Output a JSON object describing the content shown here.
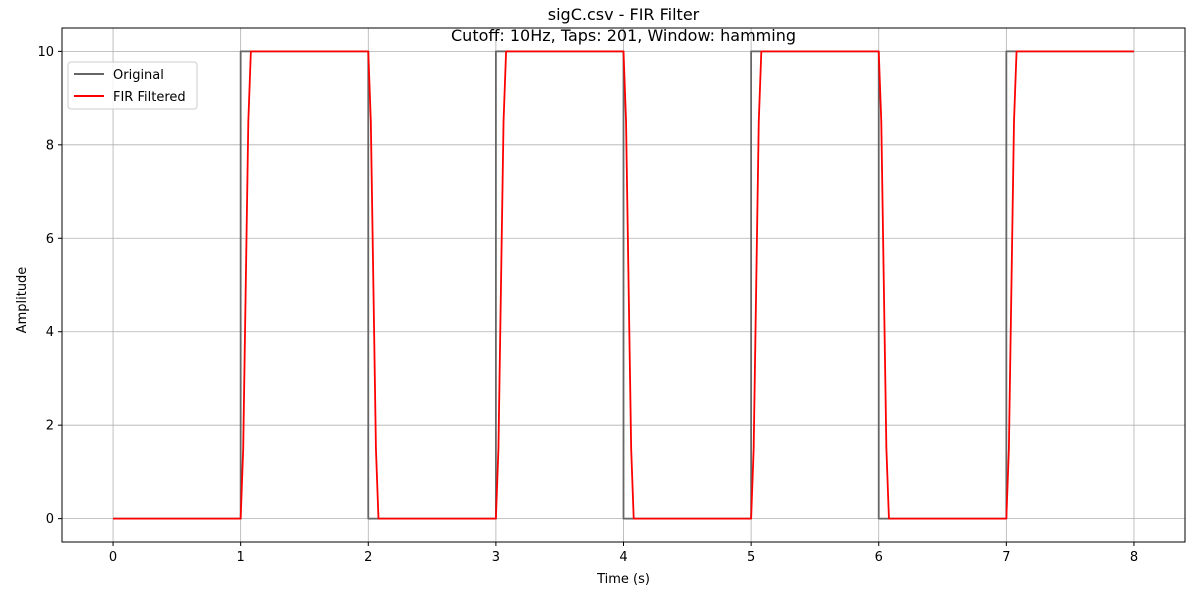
{
  "chart_data": {
    "type": "line",
    "title": "sigC.csv - FIR Filter",
    "subtitle": "Cutoff: 10Hz, Taps: 201, Window: hamming",
    "xlabel": "Time (s)",
    "ylabel": "Amplitude",
    "xlim": [
      -0.4,
      8.4
    ],
    "ylim": [
      -0.5,
      10.5
    ],
    "xticks": [
      0,
      1,
      2,
      3,
      4,
      5,
      6,
      7,
      8
    ],
    "yticks": [
      0,
      2,
      4,
      6,
      8,
      10
    ],
    "grid": true,
    "legend_position": "top-left",
    "series": [
      {
        "name": "Original",
        "color": "#666666",
        "x": [
          0,
          1,
          1,
          2,
          2,
          3,
          3,
          4,
          4,
          5,
          5,
          6,
          6,
          7,
          7,
          8
        ],
        "values": [
          0,
          0,
          10,
          10,
          0,
          0,
          10,
          10,
          0,
          0,
          10,
          10,
          0,
          0,
          10,
          10
        ]
      },
      {
        "name": "FIR Filtered",
        "color": "#ff0000",
        "x": [
          0,
          1.0,
          1.02,
          1.04,
          1.06,
          1.08,
          2.0,
          2.02,
          2.04,
          2.06,
          2.08,
          3.0,
          3.02,
          3.04,
          3.06,
          3.08,
          4.0,
          4.02,
          4.04,
          4.06,
          4.08,
          5.0,
          5.02,
          5.04,
          5.06,
          5.08,
          6.0,
          6.02,
          6.04,
          6.06,
          6.08,
          7.0,
          7.02,
          7.04,
          7.06,
          7.08,
          8.0
        ],
        "values": [
          0,
          0,
          1.5,
          5.0,
          8.5,
          10,
          10,
          8.5,
          5.0,
          1.5,
          0,
          0,
          1.5,
          5.0,
          8.5,
          10,
          10,
          8.5,
          5.0,
          1.5,
          0,
          0,
          1.5,
          5.0,
          8.5,
          10,
          10,
          8.5,
          5.0,
          1.5,
          0,
          0,
          1.5,
          5.0,
          8.5,
          10,
          10
        ]
      }
    ]
  }
}
